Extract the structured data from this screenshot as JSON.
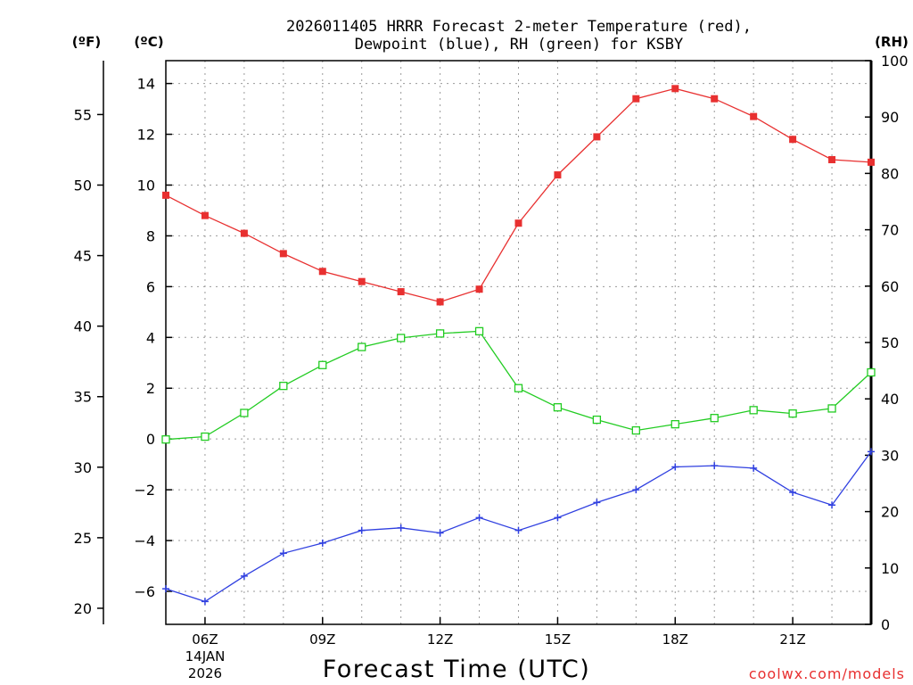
{
  "chart_data": {
    "type": "line",
    "title_line1": "2026011405 HRRR Forecast 2-meter Temperature (red),",
    "title_line2": "Dewpoint (blue), RH (green) for KSBY",
    "unit_f": "(ºF)",
    "unit_c": "(ºC)",
    "unit_rh": "(RH)",
    "xlabel": "Forecast Time (UTC)",
    "watermark": "coolwx.com/models",
    "x_hours": [
      5,
      6,
      7,
      8,
      9,
      10,
      11,
      12,
      13,
      14,
      15,
      16,
      17,
      18,
      19,
      20,
      21,
      22,
      23
    ],
    "xlim": [
      5,
      23
    ],
    "x_ticks": [
      {
        "hour": 6,
        "label": "06Z"
      },
      {
        "hour": 9,
        "label": "09Z"
      },
      {
        "hour": 12,
        "label": "12Z"
      },
      {
        "hour": 15,
        "label": "15Z"
      },
      {
        "hour": 18,
        "label": "18Z"
      },
      {
        "hour": 21,
        "label": "21Z"
      }
    ],
    "date_line1": "14JAN",
    "date_line2": "2026",
    "ylim_c": [
      -7.3,
      14.9
    ],
    "y_ticks_c": [
      -6,
      -4,
      -2,
      0,
      2,
      4,
      6,
      8,
      10,
      12,
      14
    ],
    "y_tick_labels_c": [
      "−6",
      "−4",
      "−2",
      "0",
      "2",
      "4",
      "6",
      "8",
      "10",
      "12",
      "14"
    ],
    "y_ticks_f": [
      20,
      25,
      30,
      35,
      40,
      45,
      50,
      55
    ],
    "ylim_rh": [
      0,
      100
    ],
    "y_ticks_rh": [
      0,
      10,
      20,
      30,
      40,
      50,
      60,
      70,
      80,
      90,
      100
    ],
    "series": [
      {
        "name": "Temperature",
        "unit": "C",
        "color": "#e83030",
        "marker": "filled-square",
        "values": [
          9.6,
          8.8,
          8.1,
          7.3,
          6.6,
          6.2,
          5.8,
          5.4,
          5.9,
          8.5,
          10.4,
          11.9,
          13.4,
          13.8,
          13.4,
          12.7,
          11.8,
          11.0,
          10.9
        ]
      },
      {
        "name": "Dewpoint",
        "unit": "C",
        "color": "#3040e0",
        "marker": "plus",
        "values": [
          -5.9,
          -6.4,
          -5.4,
          -4.5,
          -4.1,
          -3.6,
          -3.5,
          -3.7,
          -3.1,
          -3.6,
          -3.1,
          -2.5,
          -2.0,
          -1.1,
          -1.05,
          -1.15,
          -2.1,
          -2.6,
          -0.5
        ]
      },
      {
        "name": "RH",
        "unit": "%",
        "color": "#22cc22",
        "marker": "open-square",
        "values": [
          32.8,
          33.3,
          37.5,
          42.3,
          46.0,
          49.2,
          50.8,
          51.6,
          52.0,
          41.9,
          38.5,
          36.3,
          34.4,
          35.5,
          36.6,
          38.0,
          37.4,
          38.3,
          44.7
        ]
      }
    ]
  }
}
